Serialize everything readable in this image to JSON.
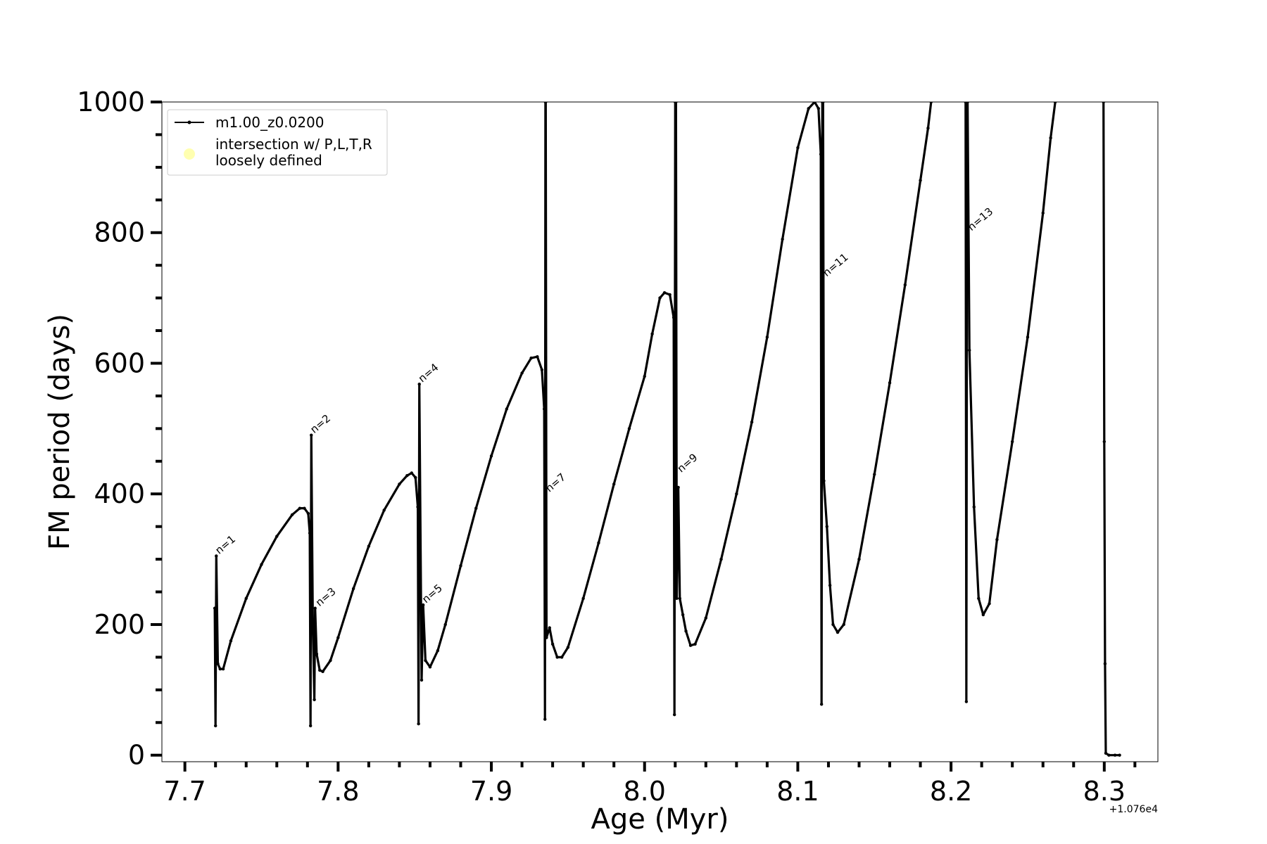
{
  "chart_data": {
    "type": "line",
    "xlabel": "Age (Myr)",
    "ylabel": "FM period (days)",
    "offset_label": "+1.076e4",
    "xlim": [
      7.685,
      8.335
    ],
    "ylim": [
      -10,
      1000
    ],
    "x_ticks": [
      7.7,
      7.8,
      7.9,
      8.0,
      8.1,
      8.2,
      8.3
    ],
    "x_tick_labels": [
      "7.7",
      "7.8",
      "7.9",
      "8.0",
      "8.1",
      "8.2",
      "8.3"
    ],
    "x_minor_ticks": [
      7.72,
      7.74,
      7.76,
      7.78,
      7.82,
      7.84,
      7.86,
      7.88,
      7.92,
      7.94,
      7.96,
      7.98,
      8.02,
      8.04,
      8.06,
      8.08,
      8.12,
      8.14,
      8.16,
      8.18,
      8.22,
      8.24,
      8.26,
      8.28,
      8.32
    ],
    "y_ticks": [
      0,
      200,
      400,
      600,
      800,
      1000
    ],
    "y_tick_labels": [
      "0",
      "200",
      "400",
      "600",
      "800",
      "1000"
    ],
    "y_minor_ticks": [
      50,
      100,
      150,
      250,
      300,
      350,
      450,
      500,
      550,
      650,
      700,
      750,
      850,
      900,
      950
    ],
    "grid": false,
    "legend_position": "top-left",
    "legend": [
      {
        "label": "m1.00_z0.0200",
        "color": "#000000",
        "marker": "line"
      },
      {
        "label": "intersection w/ P,L,T,R\nloosely defined",
        "color": "#ffffb0",
        "marker": "circle"
      }
    ],
    "series": [
      {
        "name": "m1.00_z0.0200",
        "color": "#000000",
        "segments": [
          [
            [
              7.7195,
              225
            ],
            [
              7.72,
              45
            ],
            [
              7.7205,
              305
            ],
            [
              7.7215,
              140
            ],
            [
              7.723,
              132
            ],
            [
              7.725,
              132
            ],
            [
              7.73,
              175
            ],
            [
              7.74,
              240
            ],
            [
              7.75,
              292
            ],
            [
              7.76,
              335
            ],
            [
              7.77,
              368
            ],
            [
              7.775,
              378
            ],
            [
              7.778,
              378
            ],
            [
              7.7805,
              370
            ],
            [
              7.7815,
              340
            ],
            [
              7.782,
              45
            ],
            [
              7.7825,
              490
            ],
            [
              7.7835,
              200
            ],
            [
              7.7845,
              85
            ],
            [
              7.785,
              225
            ],
            [
              7.786,
              155
            ],
            [
              7.788,
              130
            ],
            [
              7.79,
              128
            ],
            [
              7.795,
              145
            ],
            [
              7.8,
              180
            ],
            [
              7.81,
              255
            ],
            [
              7.82,
              320
            ],
            [
              7.83,
              375
            ],
            [
              7.84,
              415
            ],
            [
              7.845,
              428
            ],
            [
              7.848,
              432
            ],
            [
              7.8505,
              425
            ],
            [
              7.852,
              380
            ],
            [
              7.8525,
              48
            ],
            [
              7.853,
              568
            ],
            [
              7.8545,
              115
            ],
            [
              7.8555,
              230
            ],
            [
              7.857,
              145
            ],
            [
              7.86,
              135
            ],
            [
              7.865,
              160
            ],
            [
              7.87,
              200
            ],
            [
              7.88,
              290
            ],
            [
              7.89,
              378
            ],
            [
              7.9,
              458
            ],
            [
              7.91,
              530
            ],
            [
              7.92,
              585
            ],
            [
              7.926,
              608
            ],
            [
              7.93,
              610
            ],
            [
              7.933,
              590
            ],
            [
              7.9345,
              530
            ],
            [
              7.935,
              55
            ],
            [
              7.9353,
              1000
            ]
          ],
          [
            [
              7.9355,
              1000
            ],
            [
              7.936,
              180
            ],
            [
              7.938,
              195
            ],
            [
              7.94,
              170
            ],
            [
              7.943,
              150
            ],
            [
              7.946,
              150
            ],
            [
              7.95,
              165
            ],
            [
              7.96,
              240
            ],
            [
              7.97,
              325
            ],
            [
              7.98,
              415
            ],
            [
              7.99,
              500
            ],
            [
              8.0,
              580
            ],
            [
              8.005,
              645
            ],
            [
              8.01,
              700
            ],
            [
              8.013,
              708
            ],
            [
              8.0165,
              705
            ],
            [
              8.019,
              670
            ],
            [
              8.0195,
              62
            ],
            [
              8.02,
              1000
            ]
          ],
          [
            [
              8.0205,
              1000
            ],
            [
              8.021,
              240
            ],
            [
              8.022,
              410
            ],
            [
              8.023,
              240
            ],
            [
              8.025,
              215
            ],
            [
              8.027,
              190
            ],
            [
              8.03,
              168
            ],
            [
              8.033,
              170
            ],
            [
              8.04,
              210
            ],
            [
              8.05,
              300
            ],
            [
              8.06,
              400
            ],
            [
              8.07,
              510
            ],
            [
              8.08,
              640
            ],
            [
              8.09,
              790
            ],
            [
              8.1,
              930
            ],
            [
              8.107,
              990
            ],
            [
              8.111,
              1000
            ],
            [
              8.1135,
              990
            ],
            [
              8.115,
              920
            ],
            [
              8.1155,
              78
            ],
            [
              8.116,
              1000
            ]
          ],
          [
            [
              8.1165,
              1000
            ],
            [
              8.117,
              420
            ],
            [
              8.119,
              350
            ],
            [
              8.121,
              260
            ],
            [
              8.123,
              200
            ],
            [
              8.126,
              188
            ],
            [
              8.13,
              200
            ],
            [
              8.14,
              300
            ],
            [
              8.15,
              430
            ],
            [
              8.16,
              570
            ],
            [
              8.17,
              720
            ],
            [
              8.18,
              880
            ],
            [
              8.185,
              960
            ],
            [
              8.187,
              1000
            ]
          ],
          [
            [
              8.2095,
              1000
            ],
            [
              8.21,
              82
            ],
            [
              8.2105,
              1000
            ]
          ],
          [
            [
              8.2108,
              1000
            ],
            [
              8.212,
              620
            ],
            [
              8.215,
              380
            ],
            [
              8.218,
              240
            ],
            [
              8.221,
              215
            ],
            [
              8.225,
              232
            ],
            [
              8.23,
              330
            ],
            [
              8.24,
              480
            ],
            [
              8.25,
              640
            ],
            [
              8.26,
              830
            ],
            [
              8.265,
              945
            ],
            [
              8.268,
              1000
            ]
          ],
          [
            [
              8.2995,
              1000
            ],
            [
              8.3,
              480
            ],
            [
              8.3005,
              140
            ],
            [
              8.301,
              3
            ],
            [
              8.303,
              0
            ],
            [
              8.307,
              0
            ],
            [
              8.31,
              0
            ]
          ]
        ]
      }
    ],
    "annotations": [
      {
        "text": "n=1",
        "x": 7.7205,
        "y": 305
      },
      {
        "text": "n=2",
        "x": 7.7825,
        "y": 490
      },
      {
        "text": "n=3",
        "x": 7.786,
        "y": 225
      },
      {
        "text": "n=4",
        "x": 7.853,
        "y": 568
      },
      {
        "text": "n=5",
        "x": 7.8555,
        "y": 230
      },
      {
        "text": "n=7",
        "x": 7.936,
        "y": 400
      },
      {
        "text": "n=9",
        "x": 8.022,
        "y": 430
      },
      {
        "text": "n=11",
        "x": 8.117,
        "y": 730
      },
      {
        "text": "n=13",
        "x": 8.2115,
        "y": 800
      }
    ]
  }
}
